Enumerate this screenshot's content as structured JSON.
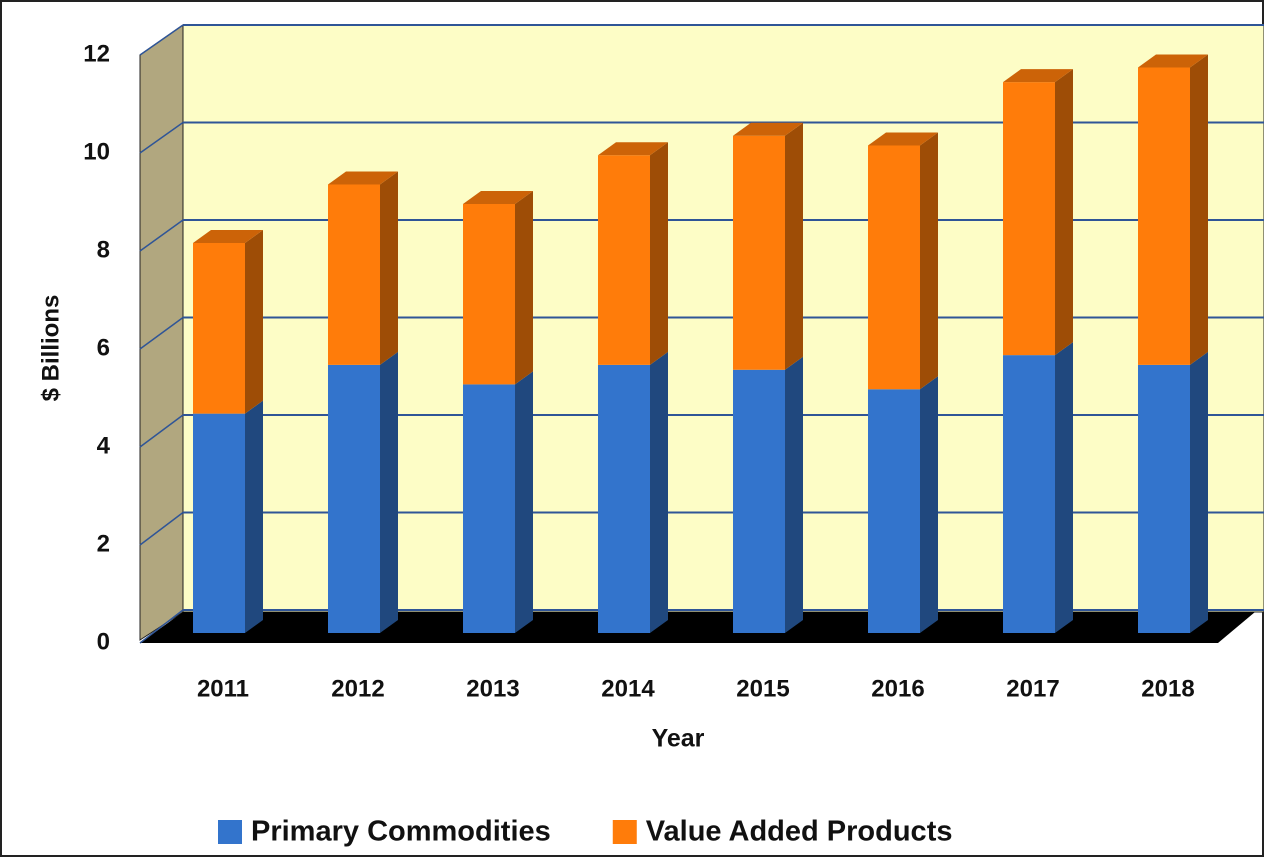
{
  "chart_data": {
    "type": "bar",
    "stacked": true,
    "x_label": "Year",
    "y_label": "$ Billions",
    "categories": [
      "2011",
      "2012",
      "2013",
      "2014",
      "2015",
      "2016",
      "2017",
      "2018"
    ],
    "series": [
      {
        "name": "Primary Commodities",
        "color": "#3374cc",
        "values": [
          4.5,
          5.5,
          5.1,
          5.5,
          5.4,
          5.0,
          5.7,
          5.5
        ]
      },
      {
        "name": "Value Added Products",
        "color": "#ff7c0a",
        "values": [
          3.5,
          3.7,
          3.7,
          4.3,
          4.8,
          5.0,
          5.6,
          6.1
        ]
      }
    ],
    "ylim": [
      0,
      12
    ],
    "yticks": [
      0,
      2,
      4,
      6,
      8,
      10,
      12
    ],
    "grid": true,
    "legend": "bottom"
  }
}
